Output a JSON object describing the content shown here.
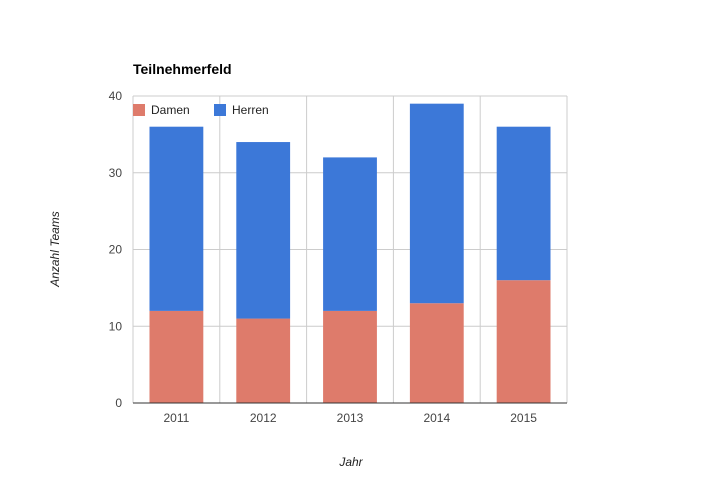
{
  "chart_data": {
    "type": "bar",
    "stacked": true,
    "title": "Teilnehmerfeld",
    "xlabel": "Jahr",
    "ylabel": "Anzahl Teams",
    "categories": [
      "2011",
      "2012",
      "2013",
      "2014",
      "2015"
    ],
    "series": [
      {
        "name": "Damen",
        "color": "#de7b6b",
        "values": [
          12,
          11,
          12,
          13,
          16
        ]
      },
      {
        "name": "Herren",
        "color": "#3c78d8",
        "values": [
          24,
          23,
          20,
          26,
          20
        ]
      }
    ],
    "ylim": [
      0,
      40
    ],
    "yticks": [
      "0",
      "10",
      "20",
      "30",
      "40"
    ],
    "grid": true,
    "legend_position": "top-left"
  }
}
